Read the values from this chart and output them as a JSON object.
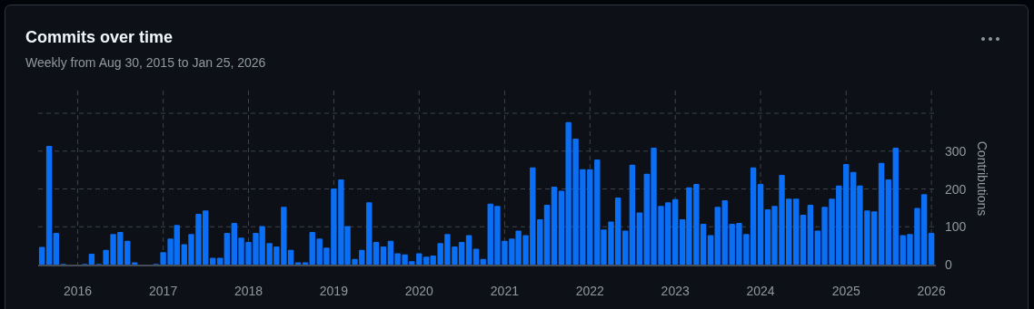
{
  "chart_data": {
    "type": "bar",
    "title": "Commits over time",
    "subtitle": "Weekly from Aug 30, 2015 to Jan 25, 2026",
    "ylabel": "Contributions",
    "color": "#0a6ff5",
    "x": [
      "2015-08",
      "2015-09",
      "2015-10",
      "2015-11",
      "2015-12",
      "2016-01",
      "2016-02",
      "2016-03",
      "2016-04",
      "2016-05",
      "2016-06",
      "2016-07",
      "2016-08",
      "2016-09",
      "2016-10",
      "2016-11",
      "2016-12",
      "2017-01",
      "2017-02",
      "2017-03",
      "2017-04",
      "2017-05",
      "2017-06",
      "2017-07",
      "2017-08",
      "2017-09",
      "2017-10",
      "2017-11",
      "2017-12",
      "2018-01",
      "2018-02",
      "2018-03",
      "2018-04",
      "2018-05",
      "2018-06",
      "2018-07",
      "2018-08",
      "2018-09",
      "2018-10",
      "2018-11",
      "2018-12",
      "2019-01",
      "2019-02",
      "2019-03",
      "2019-04",
      "2019-05",
      "2019-06",
      "2019-07",
      "2019-08",
      "2019-09",
      "2019-10",
      "2019-11",
      "2019-12",
      "2020-01",
      "2020-02",
      "2020-03",
      "2020-04",
      "2020-05",
      "2020-06",
      "2020-07",
      "2020-08",
      "2020-09",
      "2020-10",
      "2020-11",
      "2020-12",
      "2021-01",
      "2021-02",
      "2021-03",
      "2021-04",
      "2021-05",
      "2021-06",
      "2021-07",
      "2021-08",
      "2021-09",
      "2021-10",
      "2021-11",
      "2021-12",
      "2022-01",
      "2022-02",
      "2022-03",
      "2022-04",
      "2022-05",
      "2022-06",
      "2022-07",
      "2022-08",
      "2022-09",
      "2022-10",
      "2022-11",
      "2022-12",
      "2023-01",
      "2023-02",
      "2023-03",
      "2023-04",
      "2023-05",
      "2023-06",
      "2023-07",
      "2023-08",
      "2023-09",
      "2023-10",
      "2023-11",
      "2023-12",
      "2024-01",
      "2024-02",
      "2024-03",
      "2024-04",
      "2024-05",
      "2024-06",
      "2024-07",
      "2024-08",
      "2024-09",
      "2024-10",
      "2024-11",
      "2024-12",
      "2025-01",
      "2025-02",
      "2025-03",
      "2025-04",
      "2025-05",
      "2025-06",
      "2025-07",
      "2025-08",
      "2025-09",
      "2025-10",
      "2025-11",
      "2025-12",
      "2026-01"
    ],
    "values": [
      47,
      314,
      84,
      2,
      0,
      0,
      2,
      29,
      2,
      39,
      81,
      86,
      63,
      6,
      0,
      0,
      2,
      33,
      69,
      105,
      54,
      81,
      134,
      143,
      18,
      18,
      84,
      110,
      71,
      60,
      84,
      102,
      57,
      48,
      153,
      39,
      6,
      6,
      86,
      69,
      45,
      201,
      225,
      102,
      15,
      39,
      165,
      60,
      48,
      63,
      30,
      27,
      9,
      30,
      21,
      24,
      57,
      81,
      48,
      60,
      78,
      42,
      15,
      161,
      155,
      63,
      69,
      90,
      78,
      257,
      120,
      158,
      206,
      195,
      377,
      333,
      252,
      252,
      278,
      93,
      114,
      177,
      90,
      264,
      138,
      240,
      309,
      155,
      165,
      173,
      120,
      204,
      213,
      108,
      78,
      153,
      170,
      108,
      110,
      81,
      257,
      213,
      146,
      155,
      237,
      174,
      174,
      132,
      158,
      90,
      153,
      174,
      209,
      266,
      245,
      209,
      143,
      141,
      269,
      225,
      309,
      78,
      81,
      150,
      186,
      84
    ],
    "xlim": [
      "2015-07-16",
      "2026-01-20"
    ],
    "xticks": [
      "2016",
      "2017",
      "2018",
      "2019",
      "2020",
      "2021",
      "2022",
      "2023",
      "2024",
      "2025",
      "2026"
    ],
    "ylim": [
      0,
      460
    ],
    "yticks": [
      0,
      100,
      200,
      300,
      {
        "value": 400,
        "label": null
      }
    ],
    "grid": true
  }
}
